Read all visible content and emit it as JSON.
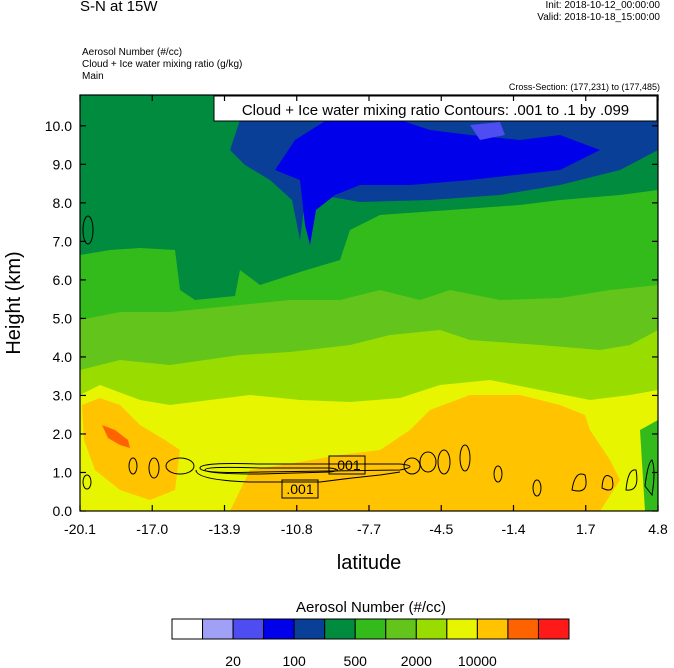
{
  "header": {
    "title": "S-N at 15W",
    "init": "Init: 2018-10-12_00:00:00",
    "valid": "Valid: 2018-10-18_15:00:00",
    "fields": [
      "Aerosol Number   (#/cc)",
      "Cloud + Ice water mixing ratio   (g/kg)",
      "Main"
    ],
    "cross_section": "Cross-Section: (177,231) to (177,485)"
  },
  "chart_data": {
    "type": "contour",
    "title": "Cloud + Ice water mixing ratio Contours: .001 to .1 by .099",
    "xlabel": "latitude",
    "ylabel": "Height (km)",
    "xlim": [
      -20.1,
      4.8
    ],
    "ylim": [
      0.0,
      10.8
    ],
    "x_ticks": [
      "-20.1",
      "-17.0",
      "-13.9",
      "-10.8",
      "-7.7",
      "-4.5",
      "-1.4",
      "1.7",
      "4.8"
    ],
    "y_ticks": [
      "0.0",
      "1.0",
      "2.0",
      "3.0",
      "4.0",
      "5.0",
      "6.0",
      "7.0",
      "8.0",
      "9.0",
      "10.0"
    ],
    "contour_labels": [
      ".001",
      ".001"
    ],
    "colorbar": {
      "title": "Aerosol Number  (#/cc)",
      "colors": [
        "#ffffff",
        "#a0a0f7",
        "#4d4df2",
        "#0000ea",
        "#0a3f97",
        "#008b3f",
        "#33bb1b",
        "#63c41b",
        "#99dd00",
        "#e8f500",
        "#ffc300",
        "#ff6300",
        "#ff1a1a"
      ],
      "tick_labels": [
        "20",
        "100",
        "500",
        "2000",
        "10000"
      ]
    }
  }
}
